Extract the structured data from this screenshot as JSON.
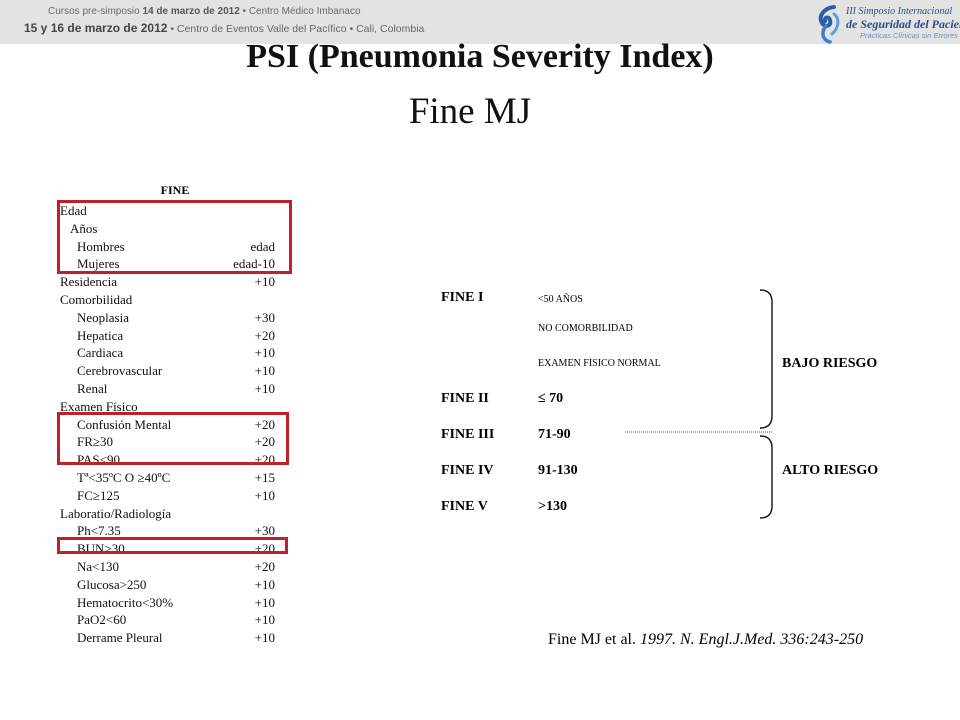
{
  "banner": {
    "line1_prefix": "Cursos pre-simposio ",
    "line1_date": "14 de marzo de 2012",
    "line1_suffix": " • Centro Médico Imbanaco",
    "line2_date": "15 y 16 de marzo de 2012",
    "line2_suffix": " • Centro de Eventos Valle del Pacífico • Cali, Colombia"
  },
  "logo": {
    "line1": "III Simposio Internacional",
    "line2": "de Seguridad del Paciente",
    "line3": "Prácticas Clínicas sin Errores"
  },
  "title": "PSI (Pneumonia Severity Index)",
  "subtitle": "Fine MJ",
  "fine_table": {
    "header": "FINE",
    "rows": [
      {
        "label": "Edad",
        "value": ""
      },
      {
        "label": "Años",
        "value": ""
      },
      {
        "label": "Hombres",
        "value": "edad"
      },
      {
        "label": "Mujeres",
        "value": "edad-10"
      },
      {
        "label": "Residencia",
        "value": "+10"
      },
      {
        "label": "Comorbilidad",
        "value": ""
      },
      {
        "label": "Neoplasia",
        "value": "+30"
      },
      {
        "label": "Hepatica",
        "value": "+20"
      },
      {
        "label": "Cardiaca",
        "value": "+10"
      },
      {
        "label": "Cerebrovascular",
        "value": "+10"
      },
      {
        "label": "Renal",
        "value": "+10"
      },
      {
        "label": "Examen Físico",
        "value": ""
      },
      {
        "label": "Confusión Mental",
        "value": "+20"
      },
      {
        "label": "FR≥30",
        "value": "+20"
      },
      {
        "label": "PAS<90",
        "value": "+20"
      },
      {
        "label": "Tª<35ºC O ≥40ºC",
        "value": "+15"
      },
      {
        "label": "FC≥125",
        "value": "+10"
      },
      {
        "label": "Laboratio/Radiología",
        "value": ""
      },
      {
        "label": "Ph<7.35",
        "value": "+30"
      },
      {
        "label": "BUN>30",
        "value": "+20"
      },
      {
        "label": "Na<130",
        "value": "+20"
      },
      {
        "label": "Glucosa>250",
        "value": "+10"
      },
      {
        "label": "Hematocrito<30%",
        "value": "+10"
      },
      {
        "label": "PaO2<60",
        "value": "+10"
      },
      {
        "label": "Derrame Pleural",
        "value": "+10"
      }
    ]
  },
  "classes": [
    {
      "name": "FINE I",
      "criteria": [
        "<50 AÑOS",
        "NO COMORBILIDAD",
        "EXAMEN FISICO NORMAL"
      ]
    },
    {
      "name": "FINE II",
      "range": "≤ 70"
    },
    {
      "name": "FINE III",
      "range": "71-90"
    },
    {
      "name": "FINE IV",
      "range": "91-130"
    },
    {
      "name": "FINE V",
      "range": ">130"
    }
  ],
  "risk_low": "BAJO RIESGO",
  "risk_high": "ALTO RIESGO",
  "citation": {
    "plain": "Fine MJ et al. ",
    "italic": "1997. N. Engl.J.Med. 336:243-250"
  },
  "colors": {
    "highlight_box": "#c0202a",
    "banner_bg": "#e3e3e3",
    "logo_blue": "#2a4f86"
  }
}
